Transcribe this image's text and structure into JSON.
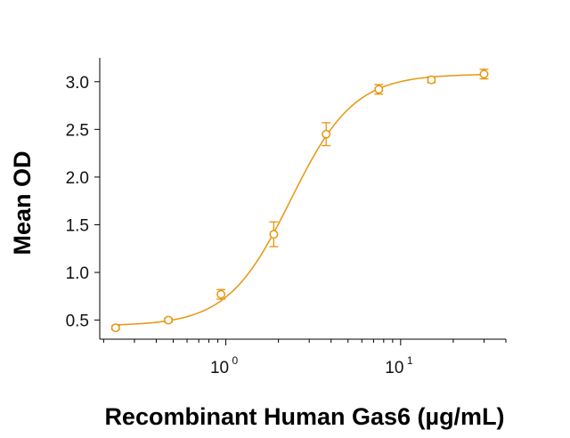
{
  "chart_data": {
    "type": "scatter",
    "title": "",
    "xlabel": "Recombinant Human Gas6 (µg/mL)",
    "ylabel": "Mean OD",
    "x_scale": "log",
    "xlim": [
      0.19,
      40
    ],
    "ylim": [
      0.3,
      3.25
    ],
    "x_ticks": [
      {
        "value": 1,
        "base": "10",
        "exp": "0"
      },
      {
        "value": 10,
        "base": "10",
        "exp": "1"
      }
    ],
    "y_ticks": [
      {
        "value": 0.5,
        "label": "0.5"
      },
      {
        "value": 1.0,
        "label": "1.0"
      },
      {
        "value": 1.5,
        "label": "1.5"
      },
      {
        "value": 2.0,
        "label": "2.0"
      },
      {
        "value": 2.5,
        "label": "2.5"
      },
      {
        "value": 3.0,
        "label": "3.0"
      }
    ],
    "grid": false,
    "legend": "none",
    "color": "#E8950E",
    "series": [
      {
        "x": [
          0.234,
          0.469,
          0.938,
          1.88,
          3.75,
          7.5,
          15,
          30
        ],
        "y": [
          0.42,
          0.5,
          0.77,
          1.4,
          2.45,
          2.92,
          3.02,
          3.08
        ],
        "err": [
          0.02,
          0.02,
          0.05,
          0.13,
          0.12,
          0.05,
          0.03,
          0.05
        ]
      }
    ],
    "fit_curve": {
      "model": "4PL",
      "bottom": 0.44,
      "top": 3.08,
      "ec50": 2.35,
      "hill": 2.4
    }
  }
}
